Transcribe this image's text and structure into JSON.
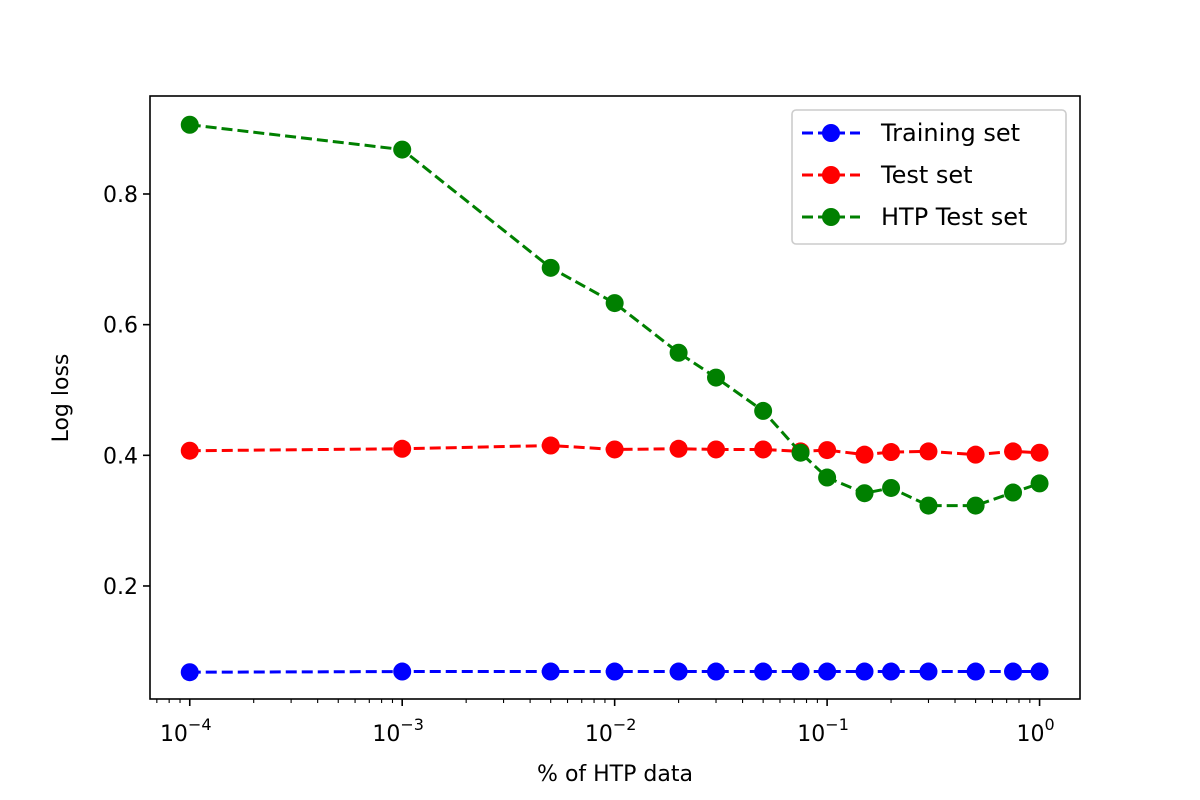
{
  "chart_data": {
    "type": "line",
    "title": "",
    "xlabel": "% of HTP data",
    "ylabel": "Log loss",
    "xscale": "log",
    "xlim": [
      6.5e-05,
      1.55
    ],
    "ylim": [
      0.027,
      0.95
    ],
    "grid": false,
    "legend_position": "top-right",
    "x": [
      0.0001,
      0.001,
      0.005,
      0.01,
      0.02,
      0.03,
      0.05,
      0.075,
      0.1,
      0.15,
      0.2,
      0.3,
      0.5,
      0.75,
      1.0
    ],
    "x_ticks": [
      {
        "value": 0.0001,
        "base": "10",
        "exp": "−4"
      },
      {
        "value": 0.001,
        "base": "10",
        "exp": "−3"
      },
      {
        "value": 0.01,
        "base": "10",
        "exp": "−2"
      },
      {
        "value": 0.1,
        "base": "10",
        "exp": "−1"
      },
      {
        "value": 1,
        "base": "10",
        "exp": "0"
      }
    ],
    "y_ticks": [
      {
        "value": 0.2,
        "label": "0.2"
      },
      {
        "value": 0.4,
        "label": "0.4"
      },
      {
        "value": 0.6,
        "label": "0.6"
      },
      {
        "value": 0.8,
        "label": "0.8"
      }
    ],
    "series": [
      {
        "name": "Training set",
        "color": "#0000ff",
        "values": [
          0.068,
          0.069,
          0.069,
          0.069,
          0.069,
          0.069,
          0.069,
          0.069,
          0.069,
          0.069,
          0.069,
          0.069,
          0.069,
          0.069,
          0.069
        ]
      },
      {
        "name": "Test set",
        "color": "#ff0000",
        "values": [
          0.407,
          0.41,
          0.415,
          0.409,
          0.41,
          0.409,
          0.409,
          0.406,
          0.408,
          0.401,
          0.405,
          0.406,
          0.401,
          0.406,
          0.404
        ]
      },
      {
        "name": "HTP Test set",
        "color": "#008000",
        "values": [
          0.906,
          0.868,
          0.687,
          0.633,
          0.557,
          0.519,
          0.468,
          0.404,
          0.366,
          0.342,
          0.35,
          0.323,
          0.323,
          0.343,
          0.357
        ]
      }
    ]
  }
}
